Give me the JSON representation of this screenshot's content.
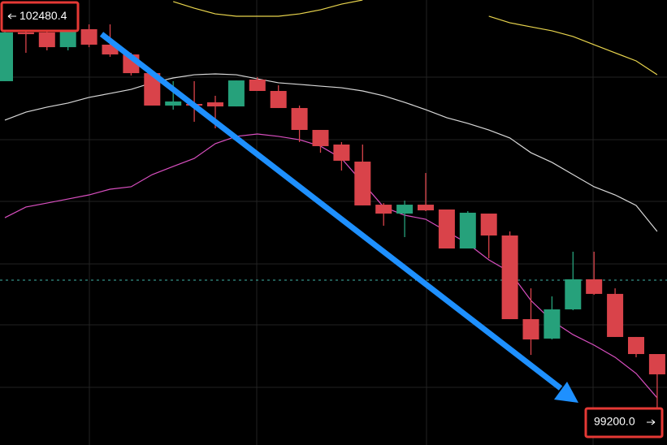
{
  "chart_data": {
    "type": "candlestick",
    "ylim": [
      99016,
      102612
    ],
    "up_color": "#26a17b",
    "down_color": "#d9434a",
    "open": [
      101956,
      102350,
      102350,
      102231,
      102376,
      102251,
      102172,
      102021,
      101759,
      101772,
      101785,
      101752,
      101969,
      101877,
      101739,
      101562,
      101444,
      101306,
      100958,
      100886,
      100958,
      100919,
      100604,
      100886,
      100709,
      100033,
      99876,
      100112,
      100355,
      100237,
      99889,
      99751
    ],
    "high": [
      102480.4,
      102415,
      102415,
      102415,
      102415,
      102415,
      102185,
      102035,
      101956,
      101956,
      101838,
      101962,
      101989,
      101923,
      101759,
      101562,
      101464,
      101444,
      100971,
      100991,
      101214,
      100919,
      100906,
      100886,
      100742,
      100282,
      100217,
      100578,
      100578,
      100282,
      99889,
      99751
    ],
    "low": [
      101956,
      102185,
      102205,
      102205,
      102231,
      102153,
      102002,
      101759,
      101726,
      101628,
      101575,
      101752,
      101877,
      101739,
      101464,
      101378,
      101234,
      100952,
      100788,
      100696,
      100906,
      100604,
      100604,
      100525,
      100033,
      99744,
      99869,
      100105,
      100230,
      99889,
      99725,
      99200
    ],
    "close": [
      102350,
      102336,
      102231,
      102376,
      102251,
      102172,
      102021,
      101759,
      101792,
      101759,
      101752,
      101962,
      101877,
      101739,
      101562,
      101431,
      101313,
      100952,
      100886,
      100958,
      100912,
      100604,
      100893,
      100709,
      100033,
      99869,
      100112,
      100355,
      100237,
      99889,
      99751,
      99587
    ],
    "lines": [
      {
        "color": "#e8d44d",
        "values": [
          null,
          null,
          null,
          null,
          null,
          null,
          null,
          null,
          102599,
          102546,
          102500,
          102481,
          102481,
          102481,
          102500,
          102533,
          102579,
          102612,
          null,
          null,
          null,
          null,
          null,
          102481,
          102428,
          102395,
          102363,
          102317,
          102251,
          102185,
          102120,
          102008
        ]
      },
      {
        "color": "#d8d8d8",
        "values": [
          101641,
          101706,
          101746,
          101779,
          101825,
          101857,
          101890,
          101943,
          101982,
          102008,
          102015,
          102008,
          101975,
          101943,
          101930,
          101916,
          101903,
          101877,
          101838,
          101785,
          101726,
          101661,
          101615,
          101562,
          101497,
          101378,
          101300,
          101201,
          101103,
          101037,
          100952,
          100742
        ]
      },
      {
        "color": "#d94fc0",
        "values": [
          100853,
          100939,
          100971,
          101004,
          101037,
          101083,
          101103,
          101201,
          101267,
          101332,
          101451,
          101510,
          101529,
          101510,
          101483,
          101431,
          101332,
          101136,
          100939,
          100873,
          100840,
          100742,
          100643,
          100512,
          100414,
          100184,
          100020,
          99908,
          99823,
          99725,
          99594,
          99397
        ]
      }
    ],
    "price_line": {
      "value": 100348,
      "color": "#3fb5a8"
    },
    "annotations": [
      {
        "text": "102480.4",
        "value": 102480.4,
        "side": "left"
      },
      {
        "text": "99200.0",
        "value": 99200.0,
        "side": "right"
      }
    ]
  }
}
